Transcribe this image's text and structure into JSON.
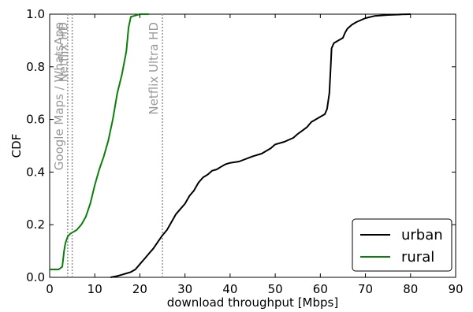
{
  "chart_data": {
    "type": "line",
    "xlabel": "download throughput [Mbps]",
    "ylabel": "CDF",
    "xlim": [
      0,
      90
    ],
    "ylim": [
      0,
      1
    ],
    "xticks": [
      "0",
      "10",
      "20",
      "30",
      "40",
      "50",
      "60",
      "70",
      "80",
      "90"
    ],
    "yticks": [
      "0.0",
      "0.2",
      "0.4",
      "0.6",
      "0.8",
      "1.0"
    ],
    "grid": false,
    "legend_position": "bottom-right",
    "series": [
      {
        "name": "urban",
        "color": "#000000",
        "x": [
          13.5,
          15,
          16,
          17,
          18,
          19,
          20,
          21,
          22,
          23,
          24,
          25,
          26,
          27,
          28,
          29,
          30,
          31,
          32,
          33,
          34,
          35,
          36,
          37,
          38,
          39,
          40,
          42,
          45,
          47,
          49,
          50,
          52,
          54,
          55,
          57,
          58,
          60,
          61,
          61.5,
          62,
          62.3,
          62.5,
          63,
          64,
          65,
          65.5,
          66,
          67,
          68,
          70,
          72,
          75,
          78,
          80
        ],
        "y": [
          0.0,
          0.005,
          0.01,
          0.015,
          0.02,
          0.03,
          0.05,
          0.07,
          0.09,
          0.11,
          0.135,
          0.16,
          0.18,
          0.21,
          0.24,
          0.26,
          0.28,
          0.31,
          0.33,
          0.36,
          0.38,
          0.39,
          0.405,
          0.41,
          0.42,
          0.43,
          0.435,
          0.44,
          0.46,
          0.47,
          0.49,
          0.505,
          0.515,
          0.53,
          0.545,
          0.57,
          0.59,
          0.61,
          0.62,
          0.64,
          0.7,
          0.8,
          0.87,
          0.89,
          0.9,
          0.91,
          0.93,
          0.945,
          0.96,
          0.97,
          0.985,
          0.993,
          0.997,
          0.999,
          1.0
        ]
      },
      {
        "name": "rural",
        "color": "#0a7f0a",
        "x": [
          0,
          2,
          2.8,
          3.2,
          3.5,
          4,
          4.5,
          5,
          6,
          7,
          8,
          9,
          10,
          11,
          12,
          13,
          14,
          15,
          16,
          17,
          17.5,
          18,
          19,
          20,
          22
        ],
        "y": [
          0.03,
          0.03,
          0.04,
          0.1,
          0.13,
          0.155,
          0.165,
          0.17,
          0.18,
          0.2,
          0.23,
          0.28,
          0.35,
          0.41,
          0.46,
          0.52,
          0.6,
          0.7,
          0.77,
          0.86,
          0.95,
          0.99,
          0.995,
          1.0,
          1.0
        ]
      }
    ],
    "reference_lines": [
      {
        "x": 4.0,
        "label": "Google Maps / WhatsApp"
      },
      {
        "x": 5.0,
        "label": "Netflix HD"
      },
      {
        "x": 25.0,
        "label": "Netflix Ultra HD"
      }
    ]
  }
}
